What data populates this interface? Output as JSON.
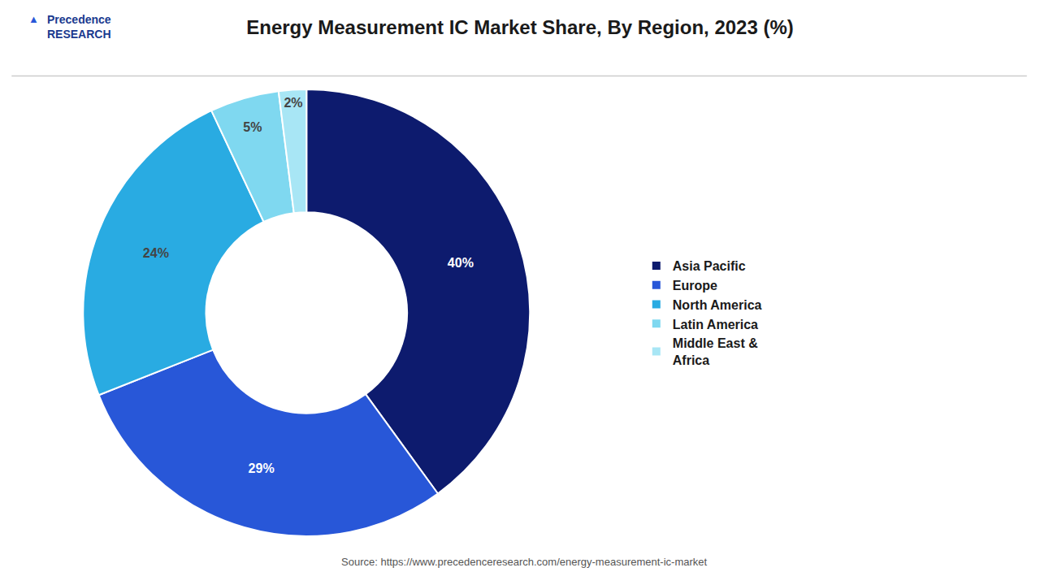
{
  "chart_data": {
    "type": "pie",
    "title": "Energy Measurement IC Market Share, By Region, 2023 (%)",
    "categories": [
      "Asia Pacific",
      "Europe",
      "North America",
      "Latin America",
      "Middle East &\nAfrica"
    ],
    "values": [
      40,
      29,
      24,
      5,
      2
    ],
    "value_labels": [
      "40%",
      "29%",
      "24%",
      "5%",
      "2%"
    ],
    "colors": [
      "#0d1b6e",
      "#2857d8",
      "#29abe2",
      "#7fd8f0",
      "#a8e6f5"
    ],
    "data_labels": true,
    "legend": "right",
    "annotations": [
      "Source: https://www.precedenceresearch.com/energy-measurement-ic-market",
      "Precedence\nRESEARCH",
      "▲"
    ]
  }
}
